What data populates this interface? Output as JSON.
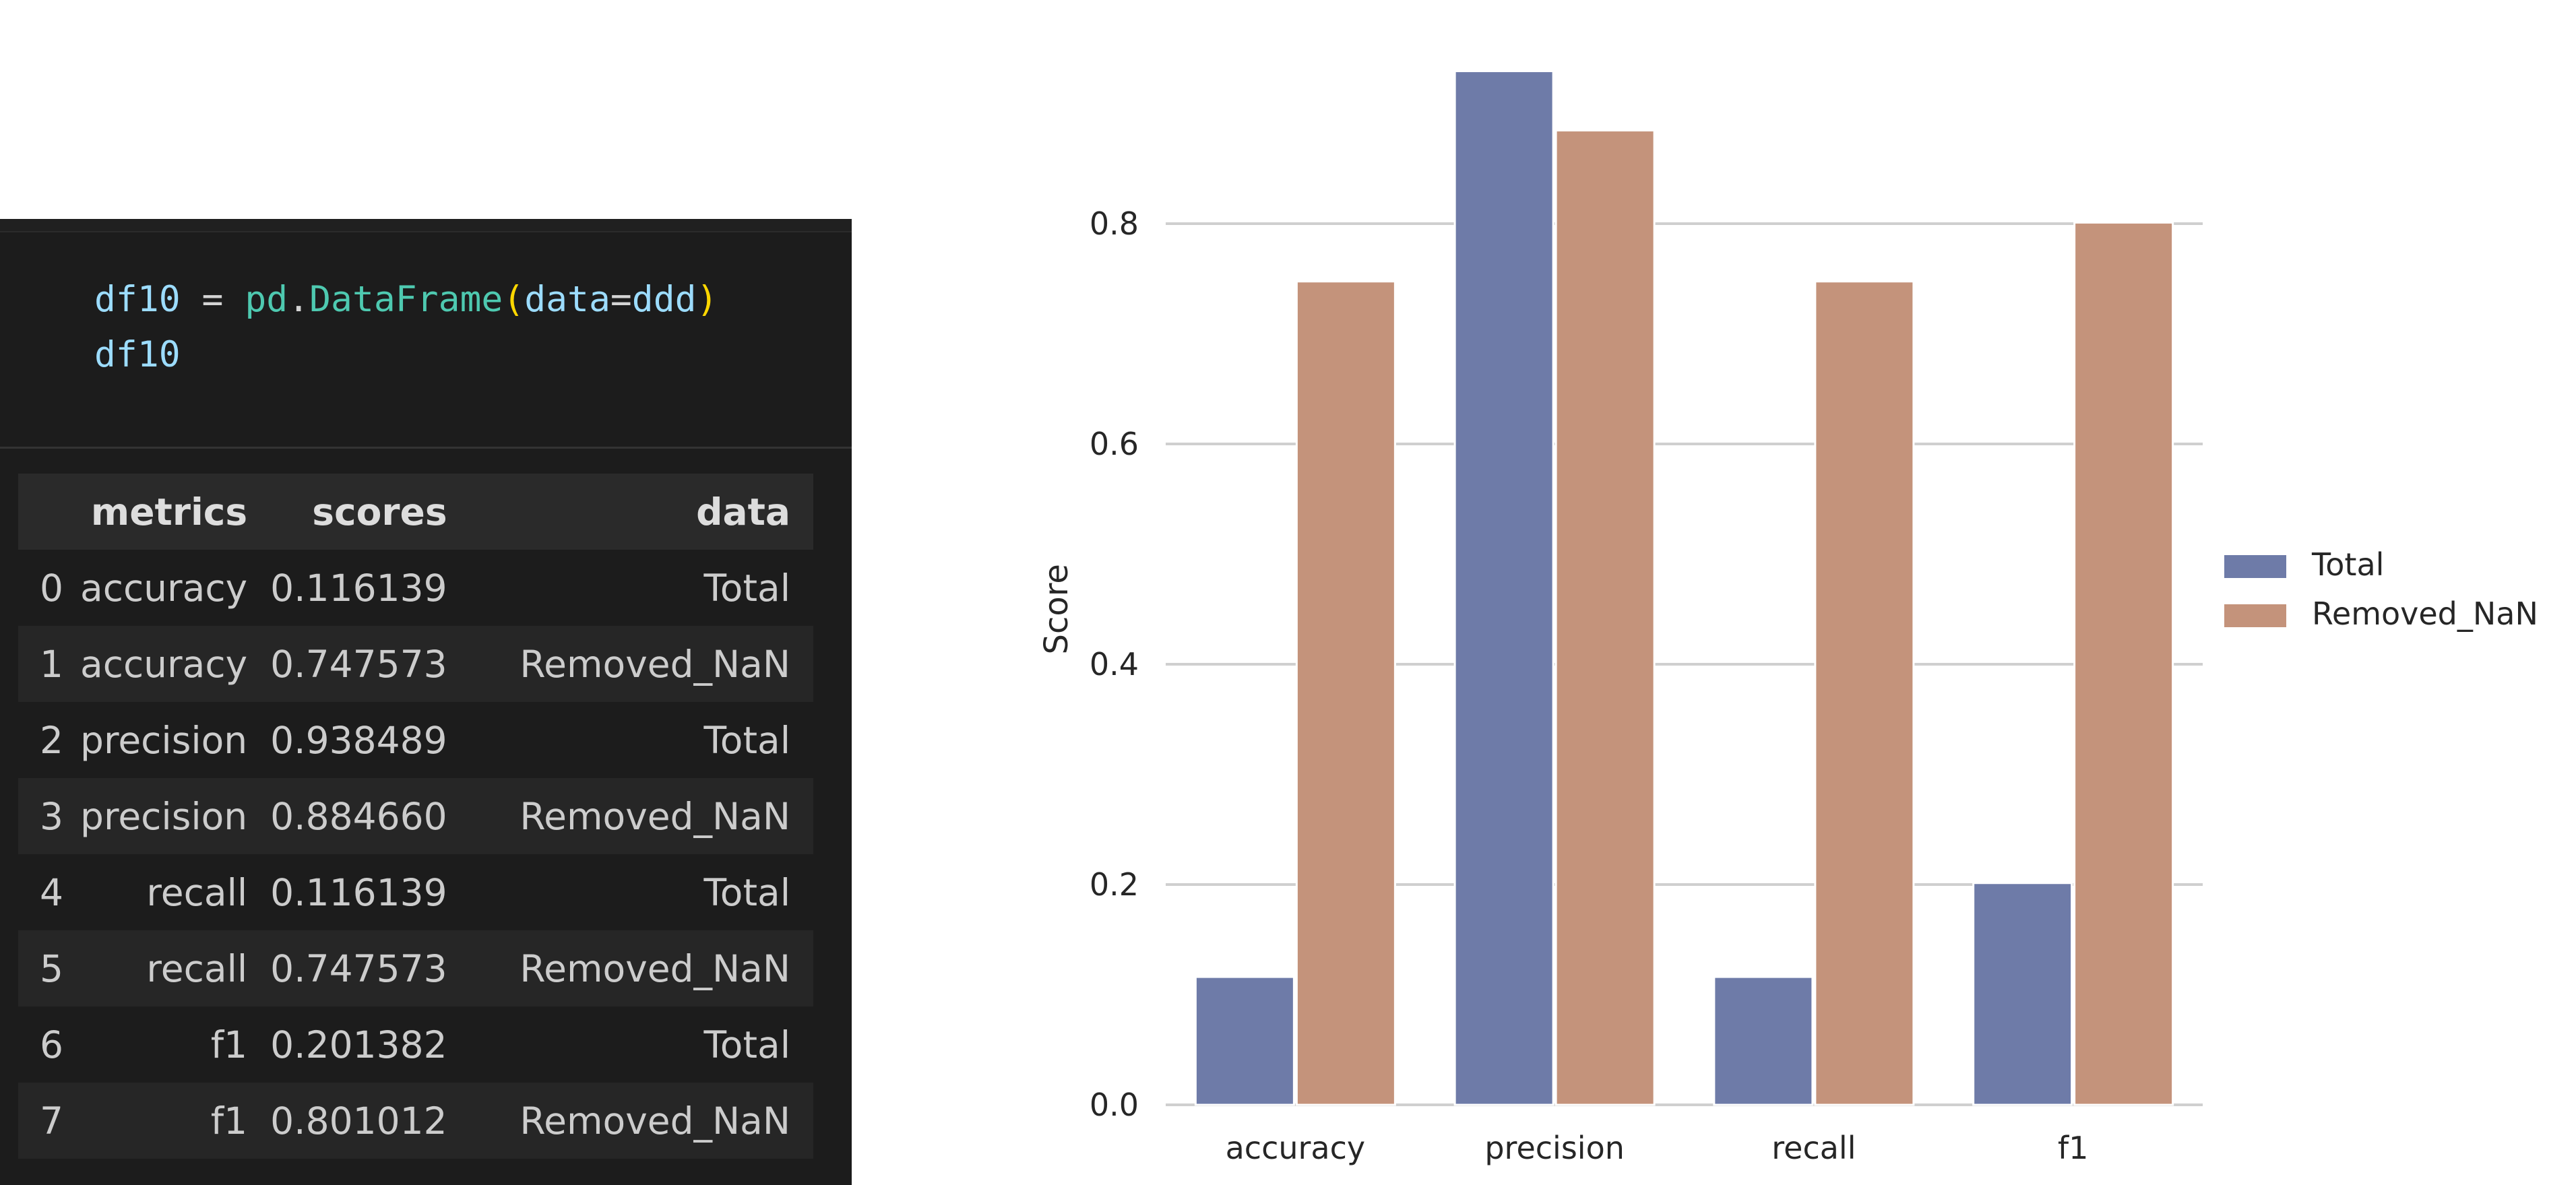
{
  "code": {
    "line1": {
      "var": "df10",
      "eq": " = ",
      "mod": "pd",
      "dot": ".",
      "fn": "DataFrame",
      "lp": "(",
      "arg": "data",
      "argeq": "=",
      "argval": "ddd",
      "rp": ")"
    },
    "line2": "df10"
  },
  "table": {
    "headers": [
      "",
      "metrics",
      "scores",
      "data"
    ],
    "rows": [
      [
        "0",
        "accuracy",
        "0.116139",
        "Total"
      ],
      [
        "1",
        "accuracy",
        "0.747573",
        "Removed_NaN"
      ],
      [
        "2",
        "precision",
        "0.938489",
        "Total"
      ],
      [
        "3",
        "precision",
        "0.884660",
        "Removed_NaN"
      ],
      [
        "4",
        "recall",
        "0.116139",
        "Total"
      ],
      [
        "5",
        "recall",
        "0.747573",
        "Removed_NaN"
      ],
      [
        "6",
        "f1",
        "0.201382",
        "Total"
      ],
      [
        "7",
        "f1",
        "0.801012",
        "Removed_NaN"
      ]
    ]
  },
  "chart_data": {
    "type": "bar",
    "categories": [
      "accuracy",
      "precision",
      "recall",
      "f1"
    ],
    "series": [
      {
        "name": "Total",
        "values": [
          0.116139,
          0.938489,
          0.116139,
          0.201382
        ],
        "color": "#6e7ba8"
      },
      {
        "name": "Removed_NaN",
        "values": [
          0.747573,
          0.88466,
          0.747573,
          0.801012
        ],
        "color": "#c4937b"
      }
    ],
    "xlabel": "",
    "ylabel": "Score",
    "ylim": [
      0,
      0.94
    ],
    "yticks": [
      "0.0",
      "0.2",
      "0.4",
      "0.6",
      "0.8"
    ],
    "ytick_values": [
      0,
      0.2,
      0.4,
      0.6,
      0.8
    ],
    "grid": true,
    "legend_placement": "right"
  }
}
